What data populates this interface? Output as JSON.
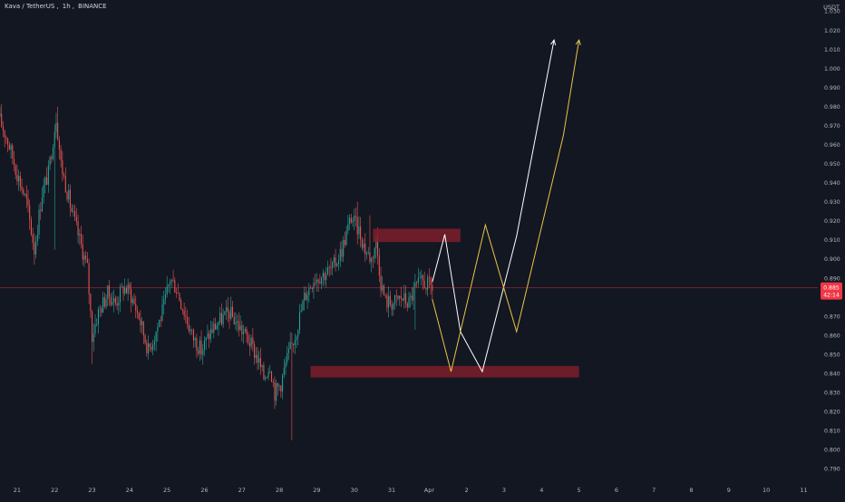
{
  "header": {
    "symbol": "Kava / TetherUS",
    "interval": "1h",
    "exchange": "BINANCE",
    "separator1": ",",
    "separator2": ","
  },
  "colors": {
    "background": "#131722",
    "up": "#26a69a",
    "down": "#ef5350",
    "zone_fill": "#7d1f2a",
    "projection_white": "#ffffff",
    "projection_yellow": "#e8c547",
    "price_tag": "#f23645",
    "axis_text": "#b2b5be"
  },
  "price_tag": {
    "price": "0.885",
    "countdown": "42:14"
  },
  "chart_data": {
    "type": "candlestick",
    "title": "",
    "unit": "USDT",
    "ylim": [
      0.785,
      1.035
    ],
    "y_ticks": [
      "1.030",
      "1.020",
      "1.010",
      "1.000",
      "0.990",
      "0.980",
      "0.970",
      "0.960",
      "0.950",
      "0.940",
      "0.930",
      "0.920",
      "0.910",
      "0.900",
      "0.890",
      "0.880",
      "0.870",
      "0.860",
      "0.850",
      "0.840",
      "0.830",
      "0.820",
      "0.810",
      "0.800",
      "0.790"
    ],
    "x_ticks": [
      "21",
      "22",
      "23",
      "24",
      "25",
      "26",
      "27",
      "28",
      "29",
      "30",
      "31",
      "Apr",
      "2",
      "3",
      "4",
      "5",
      "6",
      "7",
      "8",
      "9",
      "10",
      "11"
    ],
    "x_tick_hours": [
      0,
      24,
      48,
      72,
      96,
      120,
      144,
      168,
      192,
      216,
      240,
      264,
      288,
      312,
      336,
      360,
      384,
      408,
      432,
      456,
      480,
      504
    ],
    "x_range_hours": [
      -11,
      513
    ],
    "current_price": 0.885,
    "price_path_keypoints": [
      {
        "h": -12,
        "p": 0.975
      },
      {
        "h": -6,
        "p": 0.962
      },
      {
        "h": 0,
        "p": 0.945
      },
      {
        "h": 6,
        "p": 0.93
      },
      {
        "h": 11,
        "p": 0.905
      },
      {
        "h": 16,
        "p": 0.935
      },
      {
        "h": 20,
        "p": 0.945
      },
      {
        "h": 25,
        "p": 0.975
      },
      {
        "h": 28,
        "p": 0.95
      },
      {
        "h": 35,
        "p": 0.925
      },
      {
        "h": 40,
        "p": 0.91
      },
      {
        "h": 45,
        "p": 0.895
      },
      {
        "h": 48,
        "p": 0.86
      },
      {
        "h": 52,
        "p": 0.872
      },
      {
        "h": 58,
        "p": 0.882
      },
      {
        "h": 63,
        "p": 0.877
      },
      {
        "h": 68,
        "p": 0.885
      },
      {
        "h": 72,
        "p": 0.883
      },
      {
        "h": 78,
        "p": 0.87
      },
      {
        "h": 84,
        "p": 0.852
      },
      {
        "h": 88,
        "p": 0.86
      },
      {
        "h": 94,
        "p": 0.875
      },
      {
        "h": 98,
        "p": 0.89
      },
      {
        "h": 102,
        "p": 0.885
      },
      {
        "h": 108,
        "p": 0.87
      },
      {
        "h": 112,
        "p": 0.86
      },
      {
        "h": 118,
        "p": 0.852
      },
      {
        "h": 124,
        "p": 0.862
      },
      {
        "h": 130,
        "p": 0.868
      },
      {
        "h": 136,
        "p": 0.872
      },
      {
        "h": 142,
        "p": 0.865
      },
      {
        "h": 148,
        "p": 0.858
      },
      {
        "h": 154,
        "p": 0.848
      },
      {
        "h": 158,
        "p": 0.838
      },
      {
        "h": 162,
        "p": 0.845
      },
      {
        "h": 165,
        "p": 0.83
      },
      {
        "h": 169,
        "p": 0.835
      },
      {
        "h": 172,
        "p": 0.845
      },
      {
        "h": 178,
        "p": 0.86
      },
      {
        "h": 184,
        "p": 0.88
      },
      {
        "h": 190,
        "p": 0.89
      },
      {
        "h": 196,
        "p": 0.892
      },
      {
        "h": 202,
        "p": 0.895
      },
      {
        "h": 208,
        "p": 0.905
      },
      {
        "h": 214,
        "p": 0.922
      },
      {
        "h": 219,
        "p": 0.915
      },
      {
        "h": 223,
        "p": 0.905
      },
      {
        "h": 227,
        "p": 0.9
      },
      {
        "h": 230,
        "p": 0.91
      },
      {
        "h": 233,
        "p": 0.888
      },
      {
        "h": 236,
        "p": 0.878
      },
      {
        "h": 241,
        "p": 0.877
      },
      {
        "h": 246,
        "p": 0.88
      },
      {
        "h": 251,
        "p": 0.877
      },
      {
        "h": 255,
        "p": 0.885
      },
      {
        "h": 260,
        "p": 0.888
      },
      {
        "h": 264,
        "p": 0.886
      },
      {
        "h": 266,
        "p": 0.885
      }
    ],
    "wick_extremes": [
      {
        "h": -11,
        "high": 0.98
      },
      {
        "h": 26,
        "high": 0.98
      },
      {
        "h": 24,
        "low": 0.905
      },
      {
        "h": 48,
        "low": 0.845
      },
      {
        "h": 176,
        "low": 0.805
      },
      {
        "h": 218,
        "high": 0.93
      },
      {
        "h": 226,
        "high": 0.923
      },
      {
        "h": 255,
        "low": 0.863
      }
    ],
    "zones": [
      {
        "name": "resistance zone",
        "h1": 228,
        "h2": 284,
        "p1": 0.909,
        "p2": 0.916
      },
      {
        "name": "support zone",
        "h1": 188,
        "h2": 360,
        "p1": 0.838,
        "p2": 0.844
      }
    ],
    "projections": [
      {
        "color": "white",
        "points": [
          {
            "h": 266,
            "p": 0.888
          },
          {
            "h": 274,
            "p": 0.913
          },
          {
            "h": 284,
            "p": 0.862
          },
          {
            "h": 298,
            "p": 0.841
          },
          {
            "h": 320,
            "p": 0.912
          },
          {
            "h": 344,
            "p": 1.015
          }
        ]
      },
      {
        "color": "yellow",
        "points": [
          {
            "h": 266,
            "p": 0.879
          },
          {
            "h": 278,
            "p": 0.841
          },
          {
            "h": 300,
            "p": 0.918
          },
          {
            "h": 320,
            "p": 0.862
          },
          {
            "h": 350,
            "p": 0.965
          },
          {
            "h": 360,
            "p": 1.015
          }
        ]
      }
    ]
  }
}
